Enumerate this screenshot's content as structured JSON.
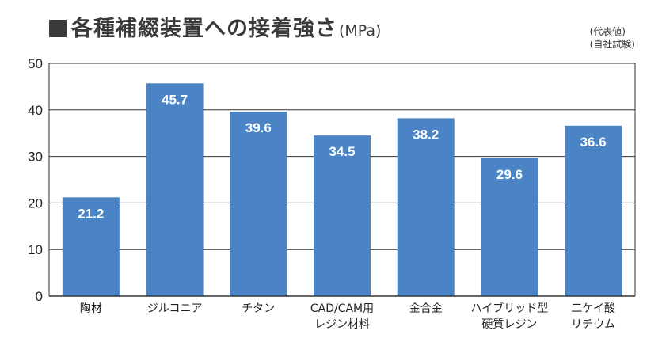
{
  "header": {
    "title": "各種補綴装置への接着強さ",
    "unit": "(MPa)",
    "note_line1": "(代表値)",
    "note_line2": "(自社試験)"
  },
  "colors": {
    "bar": "#4a84c5",
    "grid": "#333333",
    "title": "#3a3a3a"
  },
  "chart_data": {
    "type": "bar",
    "title": "各種補綴装置への接着強さ",
    "ylabel": "(MPa)",
    "xlabel": "",
    "ylim": [
      0,
      50
    ],
    "yticks": [
      0,
      10,
      20,
      30,
      40,
      50
    ],
    "grid": true,
    "categories": [
      [
        "陶材"
      ],
      [
        "ジルコニア"
      ],
      [
        "チタン"
      ],
      [
        "CAD/CAM用",
        "レジン材料"
      ],
      [
        "金合金"
      ],
      [
        "ハイブリッド型",
        "硬質レジン"
      ],
      [
        "二ケイ酸",
        "リチウム"
      ]
    ],
    "values": [
      21.2,
      45.7,
      39.6,
      34.5,
      38.2,
      29.6,
      36.6
    ],
    "value_labels": [
      "21.2",
      "45.7",
      "39.6",
      "34.5",
      "38.2",
      "29.6",
      "36.6"
    ]
  }
}
